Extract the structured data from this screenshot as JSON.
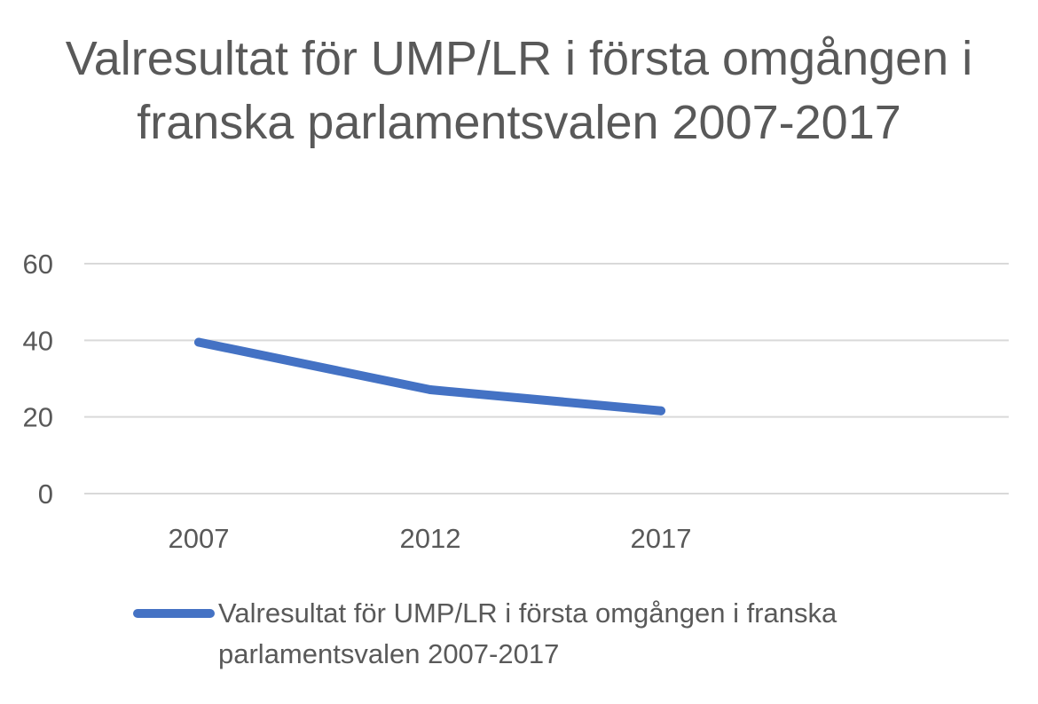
{
  "chart_data": {
    "type": "line",
    "title": "Valresultat för UMP/LR i första omgången i franska parlamentsvalen 2007-2017",
    "categories": [
      "2007",
      "2012",
      "2017"
    ],
    "series": [
      {
        "name": "Valresultat för UMP/LR i första omgången i franska parlamentsvalen 2007-2017",
        "values": [
          39.5,
          27.1,
          21.6
        ],
        "color": "#4472c4"
      }
    ],
    "yticks": [
      "0",
      "20",
      "40",
      "60"
    ],
    "ylim": [
      0,
      60
    ],
    "grid": true,
    "legend_position": "bottom"
  }
}
